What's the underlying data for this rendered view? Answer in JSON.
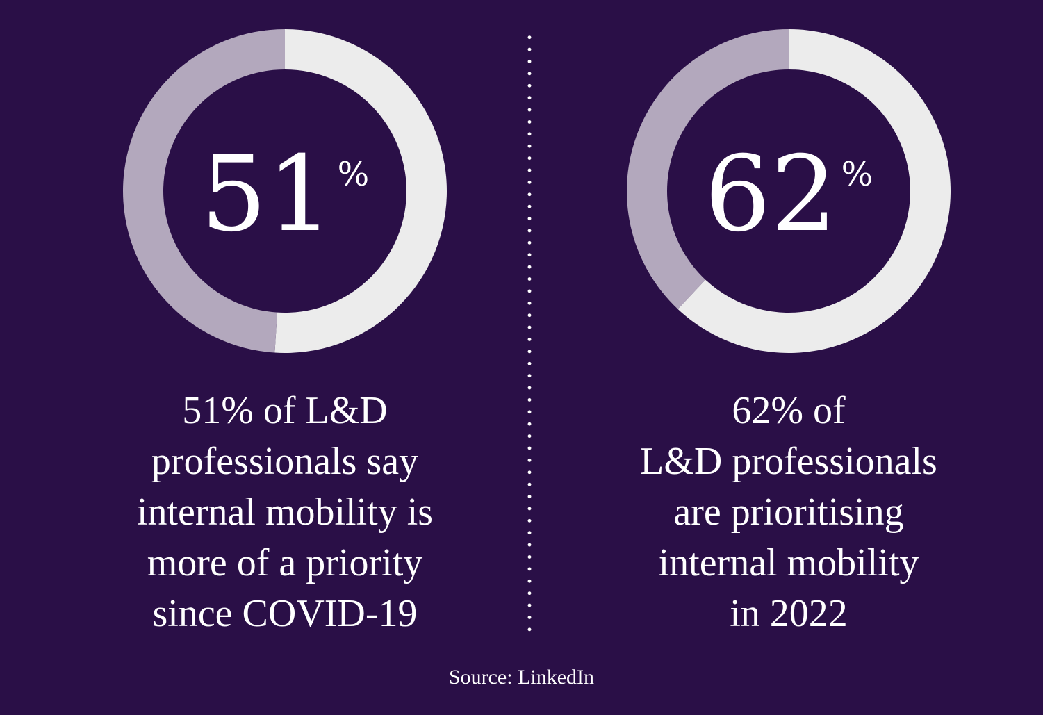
{
  "colors": {
    "background": "#2a0f47",
    "highlight": "#ececec",
    "remainder": "#b3a8bd",
    "text": "#ffffff"
  },
  "chart_data": [
    {
      "type": "pie",
      "title": "",
      "big_label": "51",
      "unit_symbol": "%",
      "values": [
        51,
        49
      ],
      "caption_lines": [
        "51% of L&D",
        "professionals say",
        "internal mobility is",
        "more of a priority",
        "since COVID-19"
      ]
    },
    {
      "type": "pie",
      "title": "",
      "big_label": "62",
      "unit_symbol": "%",
      "values": [
        62,
        38
      ],
      "caption_lines": [
        "62% of",
        "L&D professionals",
        "are prioritising",
        "internal mobility",
        "in 2022"
      ]
    }
  ],
  "source": "Source: LinkedIn"
}
